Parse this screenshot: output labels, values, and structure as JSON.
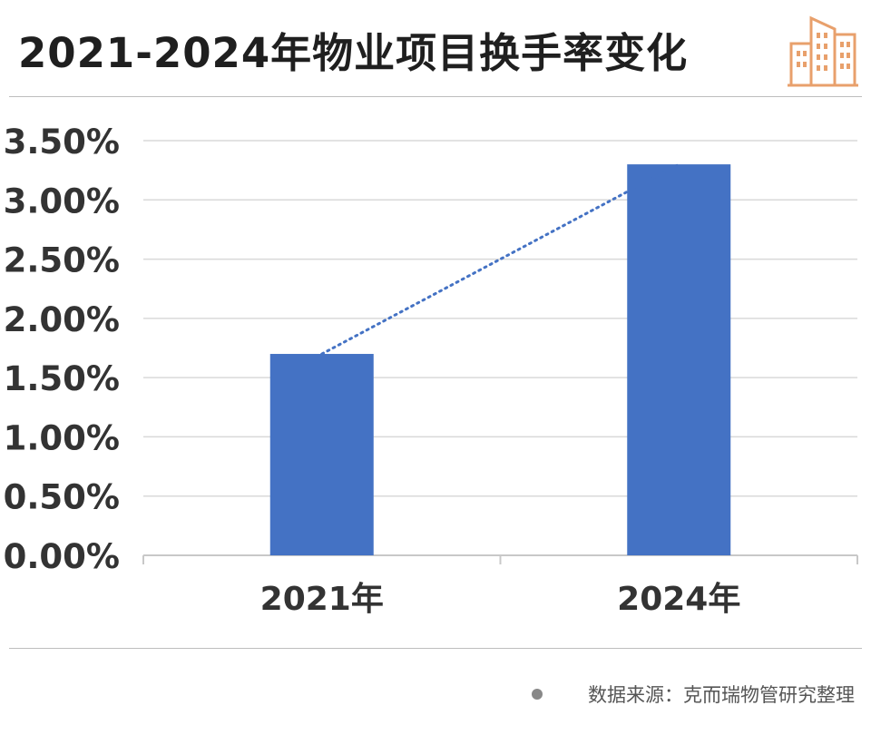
{
  "title": "2021-2024年物业项目换手率变化",
  "source": "数据来源：克而瑞物管研究整理",
  "colors": {
    "bar": "#4472c4",
    "trend": "#4472c4",
    "grid": "#d9d9d9",
    "logo": "#e8a06c"
  },
  "icons": {
    "logo": "building-icon"
  },
  "chart_data": {
    "type": "bar",
    "categories": [
      "2021年",
      "2024年"
    ],
    "series": [
      {
        "values": [
          1.7,
          3.3
        ]
      }
    ],
    "ylim": [
      0,
      3.5
    ],
    "yticks": [
      "0.00%",
      "0.50%",
      "1.00%",
      "1.50%",
      "2.00%",
      "2.50%",
      "3.00%",
      "3.50%"
    ],
    "ytick_values": [
      0,
      0.5,
      1.0,
      1.5,
      2.0,
      2.5,
      3.0,
      3.5
    ],
    "grid": true,
    "trendline": "dotted",
    "xlabel": "",
    "ylabel": ""
  }
}
